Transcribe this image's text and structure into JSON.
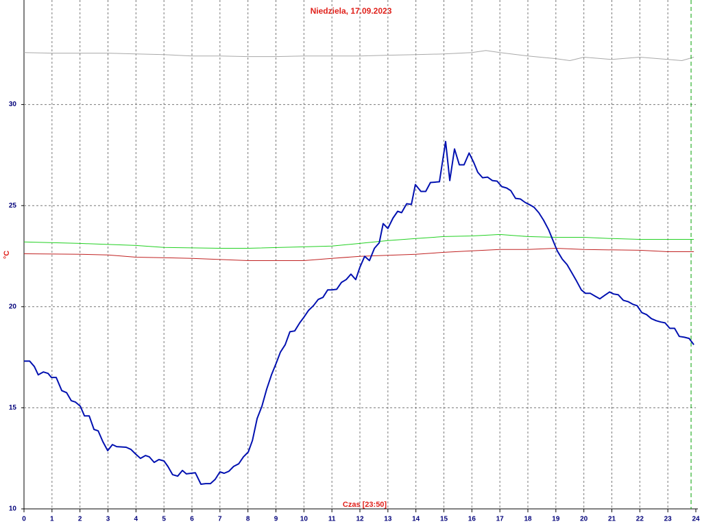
{
  "chart_data": {
    "type": "line",
    "title": "Niedziela, 17.09.2023",
    "x_label": "Czas [23:50]",
    "y_label": "°C",
    "xlim": [
      0,
      24
    ],
    "xticks": [
      0,
      1,
      2,
      3,
      4,
      5,
      6,
      7,
      8,
      9,
      10,
      11,
      12,
      13,
      14,
      15,
      16,
      17,
      18,
      19,
      20,
      21,
      22,
      23,
      24
    ],
    "ylim": [
      10,
      35
    ],
    "yticks": [
      10,
      15,
      20,
      25,
      30
    ],
    "grid": true,
    "marker_x": 23.83,
    "marker_color": "#00a000",
    "series": [
      {
        "color": "#a8a8a8",
        "x": [
          0,
          1,
          2,
          3,
          4,
          5,
          6,
          7,
          8,
          9,
          10,
          11,
          12,
          13,
          14,
          15,
          16,
          16.5,
          17,
          18,
          19,
          19.5,
          20,
          21,
          22,
          23,
          23.5,
          23.93
        ],
        "values": [
          32.57,
          32.54,
          32.54,
          32.54,
          32.5,
          32.47,
          32.4,
          32.4,
          32.37,
          32.37,
          32.4,
          32.4,
          32.4,
          32.44,
          32.47,
          32.5,
          32.57,
          32.67,
          32.57,
          32.4,
          32.27,
          32.17,
          32.34,
          32.23,
          32.34,
          32.23,
          32.17,
          32.34
        ]
      },
      {
        "color": "#20d020",
        "x": [
          0,
          2,
          4,
          5,
          7,
          8,
          10,
          11,
          12,
          13,
          14,
          15,
          16,
          17,
          18,
          19,
          20,
          21,
          22,
          23.93
        ],
        "values": [
          23.2,
          23.13,
          23.03,
          22.93,
          22.89,
          22.89,
          22.96,
          23.0,
          23.13,
          23.27,
          23.37,
          23.47,
          23.5,
          23.57,
          23.47,
          23.43,
          23.43,
          23.37,
          23.33,
          23.33
        ]
      },
      {
        "color": "#c02020",
        "x": [
          0,
          2,
          3,
          4,
          6,
          8,
          10,
          11,
          12,
          14,
          15,
          16,
          17,
          18,
          19,
          20,
          22,
          23,
          23.93
        ],
        "values": [
          22.62,
          22.59,
          22.56,
          22.45,
          22.39,
          22.28,
          22.28,
          22.39,
          22.49,
          22.59,
          22.69,
          22.76,
          22.83,
          22.83,
          22.89,
          22.83,
          22.79,
          22.72,
          22.72
        ]
      },
      {
        "color": "#0010b0",
        "x": [
          0,
          0.2,
          0.37,
          0.51,
          0.69,
          0.86,
          0.98,
          1.15,
          1.35,
          1.52,
          1.69,
          1.84,
          2.01,
          2.16,
          2.33,
          2.5,
          2.65,
          2.82,
          2.99,
          3.16,
          3.31,
          3.65,
          3.82,
          3.99,
          4.16,
          4.34,
          4.48,
          4.65,
          4.82,
          5.0,
          5.14,
          5.31,
          5.49,
          5.66,
          5.8,
          6.12,
          6.32,
          6.49,
          6.66,
          6.83,
          7.0,
          7.15,
          7.32,
          7.49,
          7.67,
          7.84,
          8.01,
          8.16,
          8.33,
          8.5,
          8.67,
          8.84,
          9.01,
          9.16,
          9.33,
          9.5,
          9.67,
          9.85,
          10.0,
          10.16,
          10.34,
          10.51,
          10.68,
          10.85,
          11.0,
          11.17,
          11.34,
          11.51,
          11.68,
          11.85,
          12.0,
          12.17,
          12.34,
          12.52,
          12.69,
          12.83,
          13.0,
          13.18,
          13.35,
          13.49,
          13.67,
          13.84,
          13.98,
          14.18,
          14.35,
          14.52,
          14.84,
          15.06,
          15.21,
          15.38,
          15.55,
          15.72,
          15.9,
          16.07,
          16.21,
          16.38,
          16.56,
          16.73,
          16.9,
          17.07,
          17.24,
          17.39,
          17.56,
          17.73,
          17.9,
          18.08,
          18.22,
          18.39,
          18.56,
          18.74,
          18.91,
          19.05,
          19.23,
          19.4,
          19.57,
          19.74,
          19.91,
          20.06,
          20.23,
          20.4,
          20.57,
          20.74,
          20.92,
          21.06,
          21.23,
          21.41,
          21.58,
          21.75,
          21.9,
          22.07,
          22.24,
          22.41,
          22.58,
          22.75,
          22.9,
          23.07,
          23.24,
          23.41,
          23.59,
          23.76,
          23.93
        ],
        "values": [
          17.31,
          17.31,
          17.04,
          16.63,
          16.77,
          16.7,
          16.5,
          16.5,
          15.85,
          15.75,
          15.35,
          15.28,
          15.08,
          14.6,
          14.6,
          13.93,
          13.86,
          13.32,
          12.88,
          13.18,
          13.08,
          13.05,
          12.94,
          12.71,
          12.5,
          12.64,
          12.57,
          12.3,
          12.44,
          12.37,
          12.1,
          11.69,
          11.62,
          11.9,
          11.73,
          11.79,
          11.22,
          11.25,
          11.25,
          11.46,
          11.83,
          11.76,
          11.86,
          12.1,
          12.23,
          12.57,
          12.81,
          13.38,
          14.47,
          15.08,
          15.92,
          16.63,
          17.21,
          17.75,
          18.12,
          18.76,
          18.8,
          19.2,
          19.48,
          19.81,
          20.05,
          20.36,
          20.46,
          20.83,
          20.83,
          20.86,
          21.2,
          21.34,
          21.61,
          21.34,
          21.95,
          22.49,
          22.28,
          22.89,
          23.16,
          24.11,
          23.87,
          24.38,
          24.72,
          24.65,
          25.09,
          25.06,
          26.04,
          25.7,
          25.7,
          26.14,
          26.18,
          28.17,
          26.24,
          27.8,
          27.02,
          27.02,
          27.6,
          27.12,
          26.65,
          26.38,
          26.41,
          26.24,
          26.21,
          25.94,
          25.87,
          25.74,
          25.36,
          25.33,
          25.16,
          25.03,
          24.92,
          24.65,
          24.28,
          23.81,
          23.23,
          22.76,
          22.35,
          22.08,
          21.68,
          21.27,
          20.83,
          20.66,
          20.66,
          20.52,
          20.39,
          20.56,
          20.73,
          20.63,
          20.59,
          20.32,
          20.25,
          20.12,
          20.05,
          19.71,
          19.61,
          19.41,
          19.31,
          19.24,
          19.2,
          18.93,
          18.93,
          18.53,
          18.49,
          18.43,
          18.12
        ]
      }
    ]
  }
}
